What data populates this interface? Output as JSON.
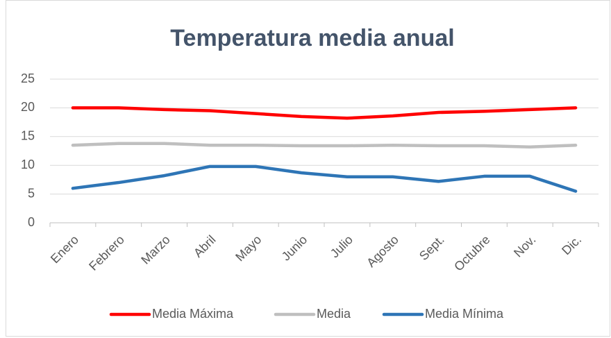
{
  "chart_data": {
    "type": "line",
    "title": "Temperatura media anual",
    "categories": [
      "Enero",
      "Febrero",
      "Marzo",
      "Abril",
      "Mayo",
      "Junio",
      "Julio",
      "Agosto",
      "Sept.",
      "Octubre",
      "Nov.",
      "Dic."
    ],
    "series": [
      {
        "name": "Media Máxima",
        "color": "#ff0000",
        "values": [
          20,
          20,
          19.7,
          19.5,
          19,
          18.5,
          18.2,
          18.6,
          19.2,
          19.4,
          19.7,
          20
        ]
      },
      {
        "name": "Media",
        "color": "#bfbfbf",
        "values": [
          13.5,
          13.8,
          13.8,
          13.5,
          13.5,
          13.4,
          13.4,
          13.5,
          13.4,
          13.4,
          13.2,
          13.5
        ]
      },
      {
        "name": "Media Mínima",
        "color": "#2e75b6",
        "values": [
          6,
          7,
          8.2,
          9.8,
          9.8,
          8.7,
          8,
          8,
          7.2,
          8.1,
          8.1,
          5.5
        ]
      }
    ],
    "ylim": [
      0,
      25
    ],
    "yticks": [
      0,
      5,
      10,
      15,
      20,
      25
    ],
    "grid": true,
    "legend": "bottom"
  }
}
